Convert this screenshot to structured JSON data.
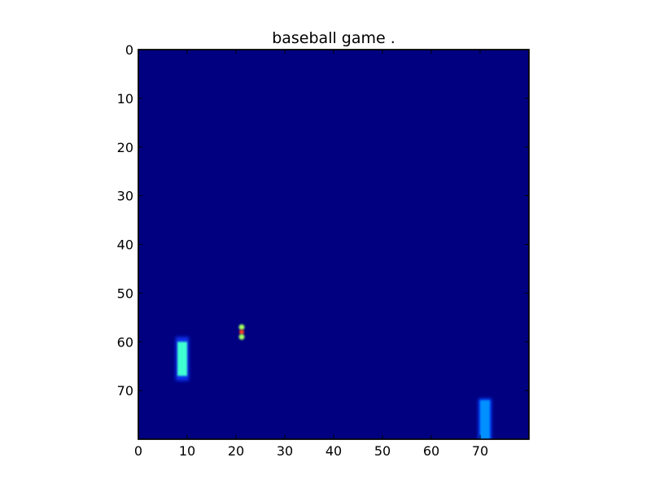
{
  "chart_data": {
    "type": "heatmap",
    "title": "baseball game .",
    "xlabel": "",
    "ylabel": "",
    "xlim": [
      0,
      80
    ],
    "ylim": [
      80,
      0
    ],
    "y_axis_inverted": true,
    "x_ticks": [
      0,
      10,
      20,
      30,
      40,
      50,
      60,
      70
    ],
    "y_ticks": [
      0,
      10,
      20,
      30,
      40,
      50,
      60,
      70
    ],
    "x_tick_labels": [
      "0",
      "10",
      "20",
      "30",
      "40",
      "50",
      "60",
      "70"
    ],
    "y_tick_labels": [
      "0",
      "10",
      "20",
      "30",
      "40",
      "50",
      "60",
      "70"
    ],
    "grid": false,
    "colormap": "jet",
    "background_value": 0.0,
    "background_color": "#000080",
    "objects": [
      {
        "name": "batter",
        "x_range": [
          8,
          10
        ],
        "y_range": [
          60,
          67
        ],
        "glow_y_range": [
          59,
          68
        ],
        "core_color": "#40ffd0",
        "glow_color": "#1030f0"
      },
      {
        "name": "ball",
        "x": 21,
        "y": 58,
        "colors": [
          "#a0ff60",
          "#ff4020",
          "#a0ff60"
        ]
      },
      {
        "name": "pitcher",
        "x_range": [
          70,
          72
        ],
        "y_range": [
          72,
          80
        ],
        "core_color": "#0090ff",
        "glow_color": "#0040ff"
      }
    ]
  }
}
